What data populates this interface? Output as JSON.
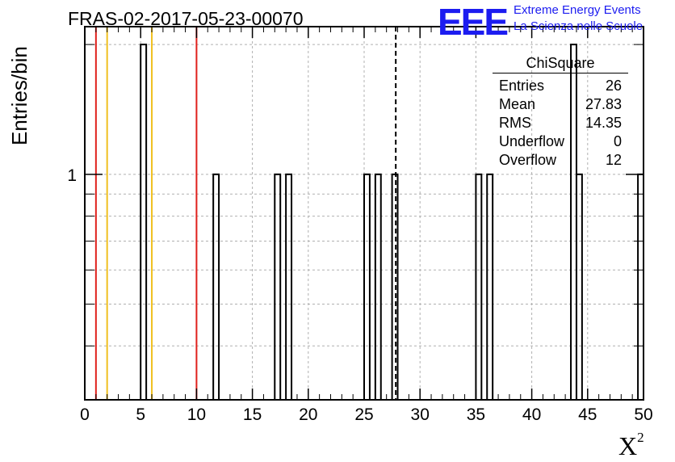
{
  "title": "FRAS-02-2017-05-23-00070",
  "logo": {
    "text": "EEE",
    "line1": "Extreme Energy Events",
    "line2": "La Scienza nelle Scuole",
    "color": "#1c1cf0"
  },
  "stats_box": {
    "title": "ChiSquare",
    "rows": [
      {
        "label": "Entries",
        "value": "26"
      },
      {
        "label": "Mean",
        "value": "27.83"
      },
      {
        "label": "RMS",
        "value": "14.35"
      },
      {
        "label": "Underflow",
        "value": "0"
      },
      {
        "label": "Overflow",
        "value": "12"
      }
    ]
  },
  "chart_data": {
    "type": "bar",
    "title": "FRAS-02-2017-05-23-00070",
    "xlabel": "X²",
    "ylabel": "Entries/bin",
    "xlim": [
      0,
      50
    ],
    "ylim": [
      0.3,
      2.2
    ],
    "y_scale": "log",
    "grid": true,
    "x_ticks": [
      0,
      5,
      10,
      15,
      20,
      25,
      30,
      35,
      40,
      45,
      50
    ],
    "y_tick_labels": [
      {
        "value": 1,
        "label": "1"
      }
    ],
    "bin_width": 0.5,
    "bins": [
      {
        "x": 5.0,
        "y": 2
      },
      {
        "x": 11.5,
        "y": 1
      },
      {
        "x": 17.0,
        "y": 1
      },
      {
        "x": 18.0,
        "y": 1
      },
      {
        "x": 25.0,
        "y": 1
      },
      {
        "x": 26.0,
        "y": 1
      },
      {
        "x": 27.5,
        "y": 1
      },
      {
        "x": 35.0,
        "y": 1
      },
      {
        "x": 36.0,
        "y": 1
      },
      {
        "x": 43.5,
        "y": 2
      },
      {
        "x": 44.0,
        "y": 1
      },
      {
        "x": 49.5,
        "y": 1
      }
    ],
    "vertical_lines": [
      {
        "x": 1,
        "color": "#e0201c",
        "style": "solid"
      },
      {
        "x": 2,
        "color": "#f0c020",
        "style": "solid"
      },
      {
        "x": 6,
        "color": "#f0c020",
        "style": "solid"
      },
      {
        "x": 10,
        "color": "#e0201c",
        "style": "solid"
      },
      {
        "x": 27.83,
        "color": "#000000",
        "style": "dashed"
      }
    ]
  }
}
